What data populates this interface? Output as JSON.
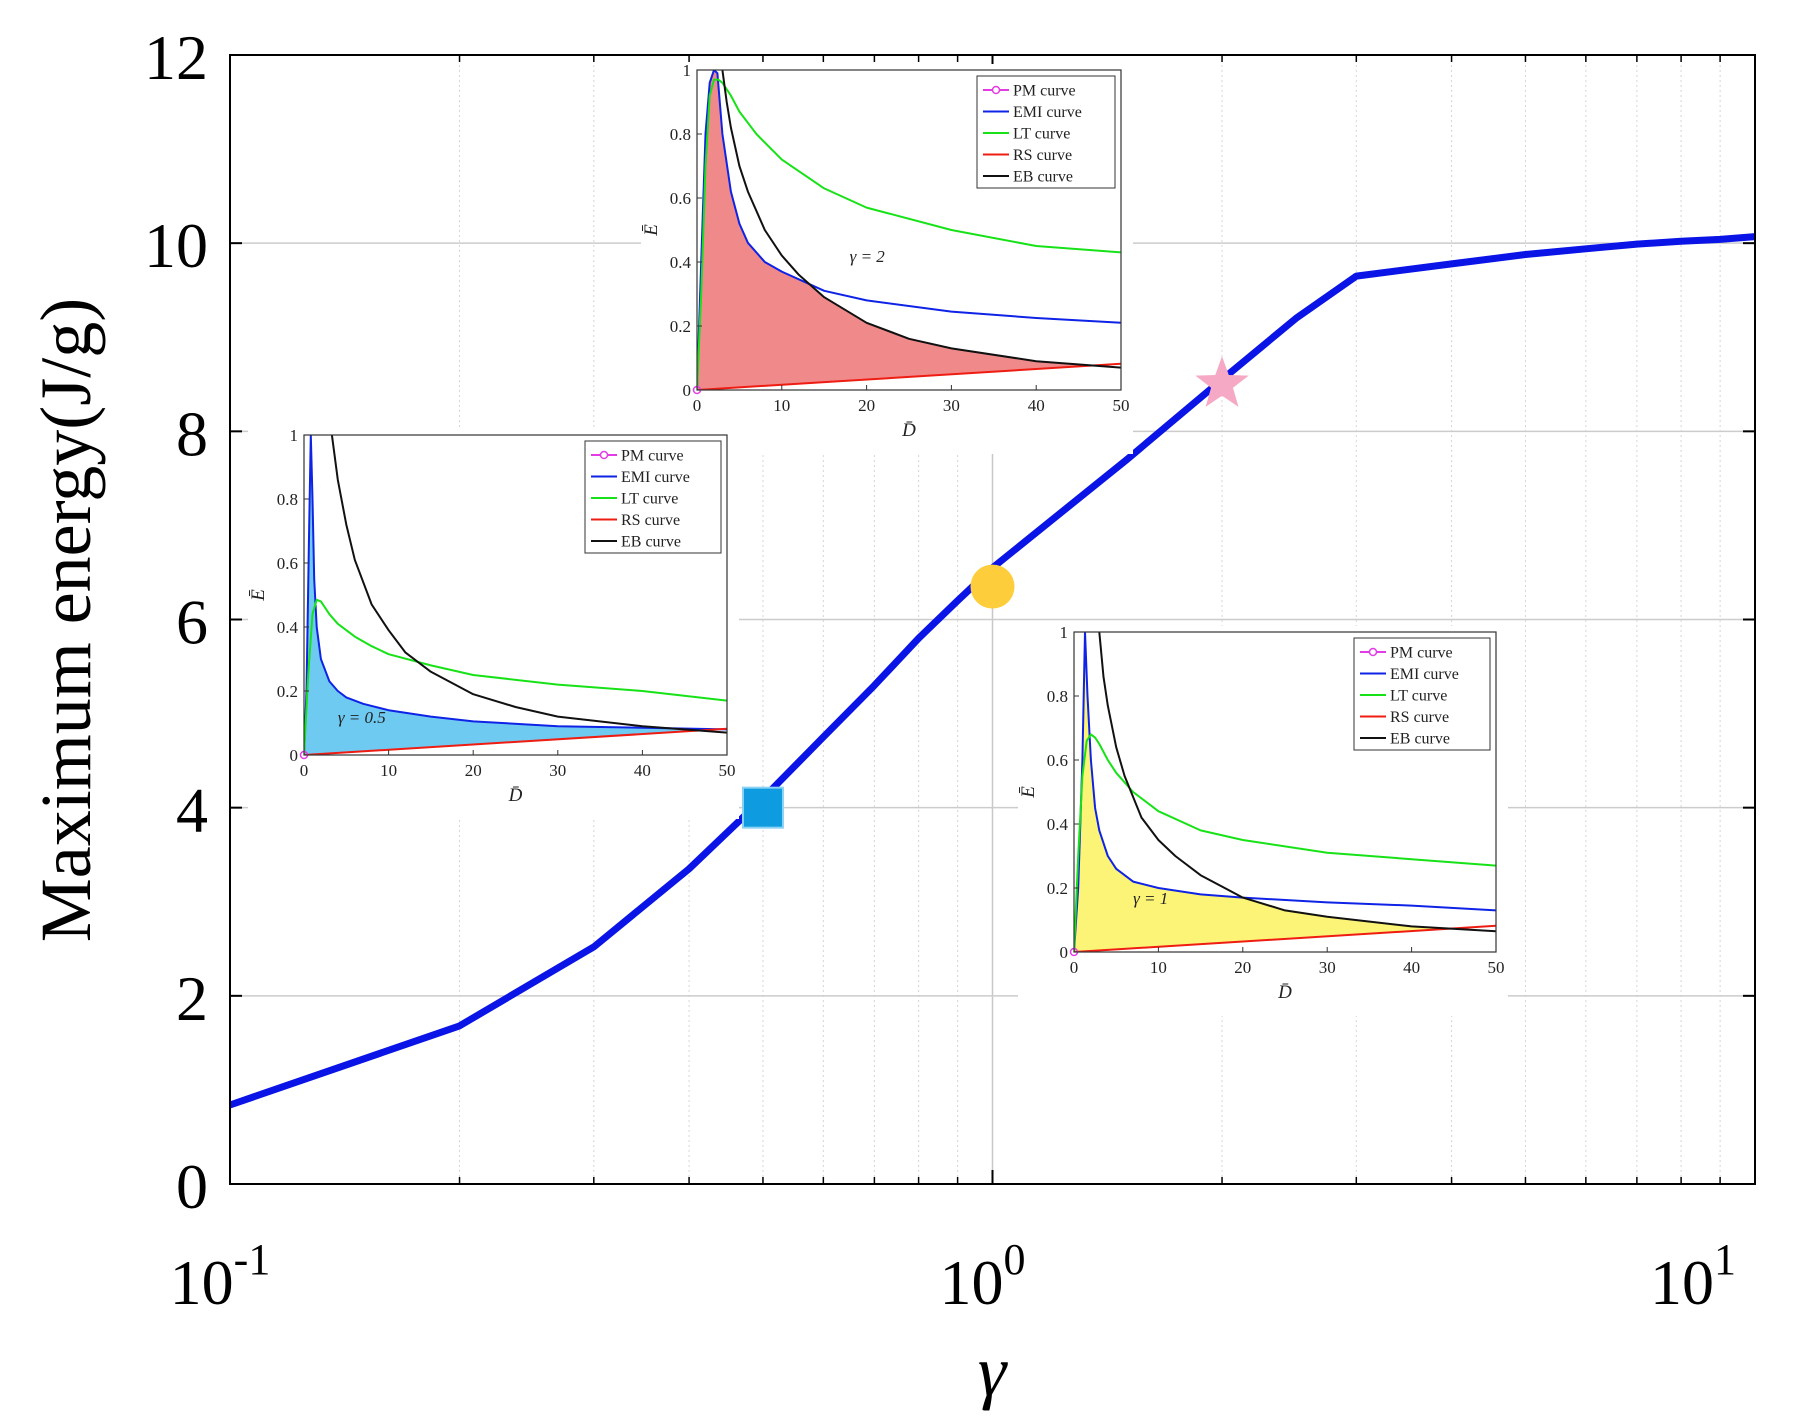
{
  "chart_data": [
    {
      "type": "line",
      "role": "main",
      "xscale": "log",
      "xlim": [
        0.1,
        10
      ],
      "ylim": [
        0,
        12
      ],
      "xlabel": "γ",
      "ylabel": "Maximum energy(J/g)",
      "xticks": [
        {
          "value": 0.1,
          "base": "10",
          "exp": "-1"
        },
        {
          "value": 1,
          "base": "10",
          "exp": "0"
        },
        {
          "value": 10,
          "base": "10",
          "exp": "1"
        }
      ],
      "yticks": [
        {
          "value": 0,
          "label": "0"
        },
        {
          "value": 2,
          "label": "2"
        },
        {
          "value": 4,
          "label": "4"
        },
        {
          "value": 6,
          "label": "6"
        },
        {
          "value": 8,
          "label": "8"
        },
        {
          "value": 10,
          "label": "10"
        },
        {
          "value": 12,
          "label": "12"
        }
      ],
      "grid": true,
      "series": [
        {
          "name": "Maximum energy",
          "color": "#0a14e6",
          "x": [
            0.1,
            0.2,
            0.3,
            0.4,
            0.5,
            0.6,
            0.7,
            0.8,
            0.9,
            1.0,
            1.5,
            2.0,
            2.5,
            3.0,
            4.0,
            5.0,
            6.0,
            7.0,
            8.0,
            9.0,
            10.0
          ],
          "y": [
            0.84,
            1.68,
            2.52,
            3.35,
            4.1,
            4.75,
            5.3,
            5.8,
            6.2,
            6.55,
            7.7,
            8.55,
            9.2,
            9.65,
            9.78,
            9.88,
            9.94,
            9.99,
            10.02,
            10.04,
            10.07
          ]
        }
      ],
      "markers": [
        {
          "name": "square",
          "x": 0.5,
          "y": 4.0,
          "color": "#0f9be0"
        },
        {
          "name": "circle",
          "x": 1.0,
          "y": 6.35,
          "color": "#fdcd3b"
        },
        {
          "name": "star",
          "x": 2.0,
          "y": 8.5,
          "color": "#f5a9c4"
        }
      ]
    },
    {
      "type": "line",
      "role": "inset",
      "id": "gamma2",
      "annotation": "γ = 2",
      "xlabel": "D̄",
      "ylabel": "Ē",
      "xlim": [
        0,
        50
      ],
      "ylim": [
        0,
        1
      ],
      "xticks": [
        0,
        10,
        20,
        30,
        40,
        50
      ],
      "yticks": [
        {
          "value": 0,
          "label": "0"
        },
        {
          "value": 0.2,
          "label": "0.2"
        },
        {
          "value": 0.4,
          "label": "0.4"
        },
        {
          "value": 0.6,
          "label": "0.6"
        },
        {
          "value": 0.8,
          "label": "0.8"
        },
        {
          "value": 1,
          "label": "1"
        }
      ],
      "fill_color": "#f08a8a",
      "legend": [
        "PM curve",
        "EMI curve",
        "LT curve",
        "RS curve",
        "EB curve"
      ],
      "series": [
        {
          "name": "PM curve",
          "color": "#e43ce4",
          "x": [
            0
          ],
          "y": [
            0
          ]
        },
        {
          "name": "EMI curve",
          "color": "#0f23e6",
          "x": [
            0,
            0.5,
            1,
            1.5,
            2,
            2.4,
            3,
            4,
            5,
            6,
            8,
            10,
            15,
            20,
            30,
            40,
            50
          ],
          "y": [
            0,
            0.4,
            0.8,
            0.96,
            1.0,
            0.99,
            0.8,
            0.62,
            0.52,
            0.46,
            0.4,
            0.37,
            0.31,
            0.28,
            0.245,
            0.225,
            0.21
          ]
        },
        {
          "name": "LT curve",
          "color": "#17e217",
          "x": [
            0,
            0.5,
            1,
            1.5,
            2,
            2.5,
            3,
            4,
            5,
            7,
            10,
            15,
            20,
            30,
            40,
            50
          ],
          "y": [
            0,
            0.3,
            0.7,
            0.92,
            0.97,
            0.97,
            0.96,
            0.92,
            0.87,
            0.8,
            0.72,
            0.63,
            0.57,
            0.5,
            0.45,
            0.43
          ]
        },
        {
          "name": "RS curve",
          "color": "#ef1c12",
          "x": [
            0,
            50
          ],
          "y": [
            0,
            0.082
          ]
        },
        {
          "name": "EB curve",
          "color": "#111111",
          "x": [
            3,
            3.5,
            4,
            5,
            6,
            8,
            10,
            12,
            15,
            20,
            25,
            30,
            40,
            50
          ],
          "y": [
            1.0,
            0.9,
            0.82,
            0.7,
            0.62,
            0.5,
            0.42,
            0.36,
            0.29,
            0.21,
            0.16,
            0.13,
            0.09,
            0.07
          ]
        }
      ]
    },
    {
      "type": "line",
      "role": "inset",
      "id": "gamma05",
      "annotation": "γ = 0.5",
      "xlabel": "D̄",
      "ylabel": "Ē",
      "xlim": [
        0,
        50
      ],
      "ylim": [
        0,
        1
      ],
      "xticks": [
        0,
        10,
        20,
        30,
        40,
        50
      ],
      "yticks": [
        {
          "value": 0,
          "label": "0"
        },
        {
          "value": 0.2,
          "label": "0.2"
        },
        {
          "value": 0.4,
          "label": "0.4"
        },
        {
          "value": 0.6,
          "label": "0.6"
        },
        {
          "value": 0.8,
          "label": "0.8"
        },
        {
          "value": 1,
          "label": "1"
        }
      ],
      "fill_color": "#6fcaf2",
      "legend": [
        "PM curve",
        "EMI curve",
        "LT curve",
        "RS curve",
        "EB curve"
      ],
      "series": [
        {
          "name": "PM curve",
          "color": "#e43ce4",
          "x": [
            0
          ],
          "y": [
            0
          ]
        },
        {
          "name": "EMI curve",
          "color": "#0f23e6",
          "x": [
            0,
            0.3,
            0.6,
            0.8,
            1,
            1.2,
            1.5,
            2,
            3,
            4,
            5,
            7,
            10,
            15,
            20,
            30,
            40,
            50
          ],
          "y": [
            0,
            0.2,
            0.7,
            1.0,
            0.8,
            0.55,
            0.4,
            0.3,
            0.23,
            0.2,
            0.18,
            0.16,
            0.14,
            0.12,
            0.105,
            0.09,
            0.085,
            0.08
          ]
        },
        {
          "name": "LT curve",
          "color": "#17e217",
          "x": [
            0,
            0.5,
            1,
            1.5,
            2,
            3,
            4,
            6,
            8,
            10,
            15,
            20,
            30,
            40,
            50
          ],
          "y": [
            0,
            0.25,
            0.44,
            0.485,
            0.48,
            0.44,
            0.41,
            0.37,
            0.34,
            0.315,
            0.28,
            0.25,
            0.22,
            0.2,
            0.17
          ]
        },
        {
          "name": "RS curve",
          "color": "#ef1c12",
          "x": [
            0,
            50
          ],
          "y": [
            0,
            0.082
          ]
        },
        {
          "name": "EB curve",
          "color": "#111111",
          "x": [
            3.3,
            4,
            5,
            6,
            8,
            10,
            12,
            15,
            20,
            25,
            30,
            40,
            50
          ],
          "y": [
            1.0,
            0.86,
            0.72,
            0.61,
            0.47,
            0.39,
            0.32,
            0.26,
            0.19,
            0.15,
            0.12,
            0.09,
            0.07
          ]
        }
      ]
    },
    {
      "type": "line",
      "role": "inset",
      "id": "gamma1",
      "annotation": "γ = 1",
      "xlabel": "D̄",
      "ylabel": "Ē",
      "xlim": [
        0,
        50
      ],
      "ylim": [
        0,
        1
      ],
      "xticks": [
        0,
        10,
        20,
        30,
        40,
        50
      ],
      "yticks": [
        {
          "value": 0,
          "label": "0"
        },
        {
          "value": 0.2,
          "label": "0.2"
        },
        {
          "value": 0.4,
          "label": "0.4"
        },
        {
          "value": 0.6,
          "label": "0.6"
        },
        {
          "value": 0.8,
          "label": "0.8"
        },
        {
          "value": 1,
          "label": "1"
        }
      ],
      "fill_color": "#fbf476",
      "legend": [
        "PM curve",
        "EMI curve",
        "LT curve",
        "RS curve",
        "EB curve"
      ],
      "series": [
        {
          "name": "PM curve",
          "color": "#e43ce4",
          "x": [
            0
          ],
          "y": [
            0
          ]
        },
        {
          "name": "EMI curve",
          "color": "#0f23e6",
          "x": [
            0,
            0.5,
            1,
            1.3,
            1.6,
            2,
            2.5,
            3,
            4,
            5,
            7,
            10,
            15,
            20,
            30,
            40,
            50
          ],
          "y": [
            0,
            0.2,
            0.6,
            1.0,
            0.8,
            0.6,
            0.45,
            0.38,
            0.3,
            0.26,
            0.22,
            0.2,
            0.18,
            0.17,
            0.155,
            0.145,
            0.13
          ]
        },
        {
          "name": "LT curve",
          "color": "#17e217",
          "x": [
            0,
            0.5,
            1,
            1.5,
            2,
            2.5,
            3,
            4,
            5,
            7,
            10,
            15,
            20,
            30,
            40,
            50
          ],
          "y": [
            0,
            0.3,
            0.55,
            0.66,
            0.68,
            0.67,
            0.65,
            0.6,
            0.56,
            0.5,
            0.44,
            0.38,
            0.35,
            0.31,
            0.29,
            0.27
          ]
        },
        {
          "name": "RS curve",
          "color": "#ef1c12",
          "x": [
            0,
            50
          ],
          "y": [
            0,
            0.082
          ]
        },
        {
          "name": "EB curve",
          "color": "#111111",
          "x": [
            3,
            3.5,
            4,
            5,
            6,
            8,
            10,
            12,
            15,
            20,
            25,
            30,
            40,
            50
          ],
          "y": [
            1.0,
            0.86,
            0.77,
            0.64,
            0.55,
            0.42,
            0.35,
            0.3,
            0.24,
            0.17,
            0.13,
            0.11,
            0.08,
            0.065
          ]
        }
      ]
    }
  ]
}
